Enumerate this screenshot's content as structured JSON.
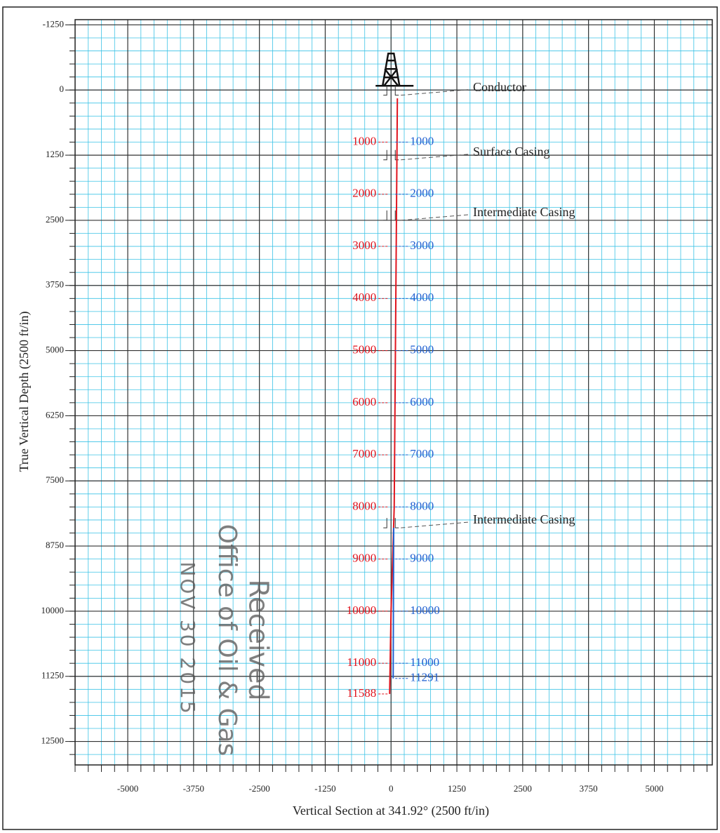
{
  "chart_data": {
    "type": "line",
    "x_label": "Vertical Section at 341.92° (2500 ft/in)",
    "y_label": "True Vertical Depth (2500 ft/in)",
    "xlim": [
      -6000,
      6100
    ],
    "ylim": [
      12950,
      -1350
    ],
    "xticks": [
      -5000,
      -3750,
      -2500,
      -1250,
      0,
      1250,
      2500,
      3750,
      5000
    ],
    "yticks": [
      -1250,
      0,
      1250,
      2500,
      3750,
      5000,
      6250,
      7500,
      8750,
      10000,
      11250,
      12500
    ],
    "grid": true,
    "grid_color": "#3cc3e6",
    "major_grid_color": "#333333",
    "series": [
      {
        "color": "#e0141e",
        "x": [
          120,
          60,
          0,
          -27
        ],
        "values": [
          160,
          8000,
          10000,
          11588
        ],
        "depth_labels": [
          1000,
          2000,
          3000,
          4000,
          5000,
          6000,
          7000,
          8000,
          9000,
          10000,
          11000,
          11588
        ]
      },
      {
        "color": "#1f5fd0",
        "x": [
          50,
          40
        ],
        "values": [
          8400,
          11291
        ],
        "depth_labels": [
          1000,
          2000,
          3000,
          4000,
          5000,
          6000,
          7000,
          8000,
          9000,
          10000,
          11000,
          11291
        ]
      }
    ],
    "annotations": [
      {
        "text": "Conductor",
        "depth": 100
      },
      {
        "text": "Surface Casing",
        "depth": 1340
      },
      {
        "text": "Intermediate Casing",
        "depth": 2500
      },
      {
        "text": "Intermediate Casing",
        "depth": 8400
      }
    ],
    "stamp": [
      "Received",
      "Office of Oil & Gas",
      "NOV 30 2015"
    ]
  }
}
